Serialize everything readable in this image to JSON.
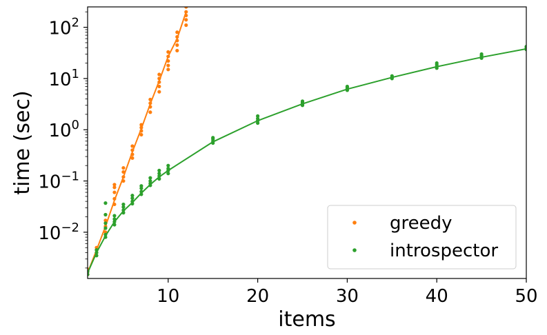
{
  "chart_data": {
    "type": "scatter",
    "title": "",
    "xlabel": "items",
    "ylabel": "time (sec)",
    "xlim": [
      1,
      50
    ],
    "ylim": [
      0.00125,
      250
    ],
    "yscale": "log",
    "grid": false,
    "legend_position": "bottom-right",
    "x_ticks": [
      {
        "value": 10,
        "label": "10"
      },
      {
        "value": 20,
        "label": "20"
      },
      {
        "value": 30,
        "label": "30"
      },
      {
        "value": 40,
        "label": "40"
      },
      {
        "value": 50,
        "label": "50"
      }
    ],
    "y_ticks": [
      {
        "value": 0.01,
        "base": "10",
        "exp": "−2"
      },
      {
        "value": 0.1,
        "base": "10",
        "exp": "−1"
      },
      {
        "value": 1,
        "base": "10",
        "exp": "0"
      },
      {
        "value": 10,
        "base": "10",
        "exp": "1"
      },
      {
        "value": 100,
        "base": "10",
        "exp": "2"
      }
    ],
    "series": [
      {
        "name": "greedy",
        "color": "#ff7f0e",
        "fit_line": {
          "x": [
            1,
            2,
            3,
            4,
            5,
            6,
            7,
            8,
            9,
            10,
            11,
            12
          ],
          "y": [
            0.0016,
            0.0045,
            0.013,
            0.042,
            0.12,
            0.37,
            1.05,
            3.2,
            9.0,
            27,
            60,
            200
          ]
        },
        "points": [
          {
            "x": 1,
            "y": [
              0.0015,
              0.0017,
              0.0019
            ]
          },
          {
            "x": 2,
            "y": [
              0.004,
              0.0045,
              0.005
            ]
          },
          {
            "x": 3,
            "y": [
              0.01,
              0.013,
              0.017,
              0.022
            ]
          },
          {
            "x": 4,
            "y": [
              0.035,
              0.045,
              0.06,
              0.075,
              0.085
            ]
          },
          {
            "x": 5,
            "y": [
              0.1,
              0.12,
              0.15,
              0.18
            ]
          },
          {
            "x": 6,
            "y": [
              0.28,
              0.33,
              0.4,
              0.48
            ]
          },
          {
            "x": 7,
            "y": [
              0.8,
              0.95,
              1.1,
              1.25
            ]
          },
          {
            "x": 8,
            "y": [
              2.2,
              2.8,
              3.3,
              3.9
            ]
          },
          {
            "x": 9,
            "y": [
              5.5,
              7,
              8.5,
              10,
              12
            ]
          },
          {
            "x": 10,
            "y": [
              15,
              18,
              22,
              27,
              33
            ]
          },
          {
            "x": 11,
            "y": [
              35,
              45,
              55,
              65,
              80
            ]
          },
          {
            "x": 12,
            "y": [
              110,
              140,
              170,
              200,
              250
            ]
          }
        ]
      },
      {
        "name": "introspector",
        "color": "#2ca02c",
        "fit_line": {
          "x": [
            1,
            2,
            3,
            4,
            5,
            6,
            7,
            8,
            9,
            10,
            15,
            20,
            25,
            30,
            35,
            40,
            45,
            50
          ],
          "y": [
            0.0016,
            0.004,
            0.0085,
            0.016,
            0.026,
            0.038,
            0.058,
            0.085,
            0.12,
            0.16,
            0.58,
            1.5,
            3.2,
            6.2,
            10.5,
            17,
            26,
            38
          ]
        },
        "points": [
          {
            "x": 1,
            "y": [
              0.0015,
              0.0017
            ]
          },
          {
            "x": 2,
            "y": [
              0.0035,
              0.004,
              0.0045
            ]
          },
          {
            "x": 3,
            "y": [
              0.008,
              0.009,
              0.012,
              0.015,
              0.022,
              0.037
            ]
          },
          {
            "x": 4,
            "y": [
              0.014,
              0.016,
              0.018,
              0.021
            ]
          },
          {
            "x": 5,
            "y": [
              0.024,
              0.027,
              0.031,
              0.035
            ]
          },
          {
            "x": 6,
            "y": [
              0.036,
              0.04,
              0.046,
              0.052
            ]
          },
          {
            "x": 7,
            "y": [
              0.055,
              0.062,
              0.072,
              0.08
            ]
          },
          {
            "x": 8,
            "y": [
              0.082,
              0.09,
              0.1,
              0.115
            ]
          },
          {
            "x": 9,
            "y": [
              0.11,
              0.125,
              0.14,
              0.16
            ]
          },
          {
            "x": 10,
            "y": [
              0.14,
              0.16,
              0.175,
              0.2
            ]
          },
          {
            "x": 15,
            "y": [
              0.55,
              0.6,
              0.66,
              0.7
            ]
          },
          {
            "x": 20,
            "y": [
              1.35,
              1.5,
              1.65,
              1.85
            ]
          },
          {
            "x": 25,
            "y": [
              3.0,
              3.2,
              3.4,
              3.6
            ]
          },
          {
            "x": 30,
            "y": [
              5.9,
              6.2,
              6.6,
              7.0
            ]
          },
          {
            "x": 35,
            "y": [
              10,
              10.5,
              11.2
            ]
          },
          {
            "x": 40,
            "y": [
              16,
              17,
              18.5,
              20
            ]
          },
          {
            "x": 45,
            "y": [
              25,
              26.5,
              28,
              30
            ]
          },
          {
            "x": 50,
            "y": [
              37,
              39,
              42
            ]
          }
        ]
      }
    ]
  }
}
